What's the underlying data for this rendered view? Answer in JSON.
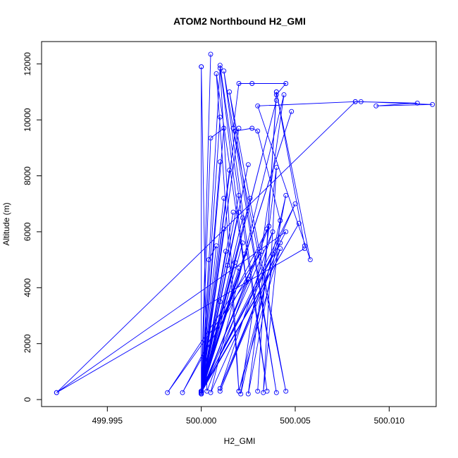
{
  "chart_data": {
    "type": "line",
    "title": "ATOM2 Northbound H2_GMI",
    "xlabel": "H2_GMI",
    "ylabel": "Altitude (m)",
    "xlim": [
      499.9915,
      500.0125
    ],
    "ylim": [
      -250,
      12800
    ],
    "xticks": [
      499.995,
      500.0,
      500.005,
      500.01
    ],
    "xtick_labels": [
      "499.995",
      "500.000",
      "500.005",
      "500.010"
    ],
    "yticks": [
      0,
      2000,
      4000,
      6000,
      8000,
      10000,
      12000
    ],
    "ytick_labels": [
      "0",
      "2000",
      "4000",
      "6000",
      "8000",
      "10000",
      "12000"
    ],
    "grid": false,
    "marker": "open-circle",
    "color": "#0000ff",
    "series": [
      {
        "points": [
          [
            500.0,
            200
          ],
          [
            500.0,
            11900
          ],
          [
            500.0,
            300
          ],
          [
            500.001,
            11850
          ],
          [
            500.002,
            300
          ],
          [
            500.0008,
            11650
          ],
          [
            500.0024,
            4200
          ],
          [
            500.001,
            11950
          ],
          [
            500.0035,
            300
          ],
          [
            500.0012,
            11750
          ],
          [
            500.004,
            250
          ],
          [
            500.0015,
            11000
          ],
          [
            500.0045,
            300
          ],
          [
            500.0017,
            9700
          ],
          [
            500.002,
            11300
          ],
          [
            500.0027,
            11300
          ],
          [
            500.0045,
            11300
          ],
          [
            500.004,
            10900
          ],
          [
            500.003,
            300
          ],
          [
            500.004,
            11000
          ],
          [
            500.0055,
            5500
          ],
          [
            500.004,
            11000
          ],
          [
            500.0058,
            5000
          ],
          [
            500.003,
            10500
          ],
          [
            500.0082,
            10650
          ],
          [
            500.0085,
            10650
          ],
          [
            500.0123,
            10550
          ],
          [
            500.0093,
            10500
          ],
          [
            500.0115,
            10600
          ],
          [
            500.0082,
            10650
          ],
          [
            499.9923,
            250
          ],
          [
            500.0055,
            5400
          ],
          [
            499.9923,
            250
          ],
          [
            500.0045,
            6000
          ],
          [
            500.0,
            300
          ],
          [
            500.0018,
            9600
          ],
          [
            500.0027,
            9700
          ],
          [
            500.003,
            9600
          ],
          [
            500.0042,
            6400
          ],
          [
            500.0033,
            250
          ],
          [
            500.004,
            8300
          ],
          [
            500.0025,
            200
          ],
          [
            500.0045,
            7300
          ],
          [
            500.0021,
            200
          ],
          [
            500.0044,
            10900
          ],
          [
            500.0005,
            250
          ],
          [
            500.005,
            7000
          ],
          [
            500.0,
            250
          ],
          [
            500.0052,
            6300
          ],
          [
            500.0,
            300
          ],
          [
            500.0048,
            10300
          ],
          [
            500.0,
            250
          ],
          [
            500.004,
            10700
          ],
          [
            500.0,
            200
          ],
          [
            500.0025,
            8400
          ],
          [
            500.0,
            300
          ],
          [
            500.002,
            7300
          ],
          [
            500.0,
            250
          ],
          [
            500.0022,
            6500
          ],
          [
            500.0,
            200
          ],
          [
            500.002,
            6700
          ],
          [
            500.0,
            250
          ],
          [
            500.0017,
            6700
          ],
          [
            500.0,
            300
          ],
          [
            500.0013,
            5300
          ],
          [
            500.0,
            250
          ],
          [
            500.001,
            3500
          ],
          [
            500.0,
            300
          ],
          [
            500.001,
            8500
          ],
          [
            500.0,
            250
          ],
          [
            500.0012,
            7200
          ],
          [
            500.0,
            250
          ],
          [
            500.0023,
            5200
          ],
          [
            500.0,
            300
          ],
          [
            500.0025,
            4300
          ],
          [
            499.9982,
            250
          ],
          [
            500.0032,
            5300
          ],
          [
            499.999,
            250
          ],
          [
            500.0036,
            6200
          ],
          [
            500.0003,
            300
          ],
          [
            500.0,
            11900
          ],
          [
            500.0,
            300
          ],
          [
            500.0005,
            12350
          ],
          [
            500.0,
            250
          ],
          [
            500.0012,
            9700
          ],
          [
            500.0005,
            9350
          ],
          [
            500.0,
            300
          ],
          [
            500.0008,
            5500
          ],
          [
            500.0004,
            5000
          ],
          [
            500.0,
            250
          ],
          [
            500.0012,
            6100
          ],
          [
            500.0,
            300
          ],
          [
            500.0015,
            8200
          ],
          [
            500.0,
            250
          ],
          [
            500.0022,
            5600
          ],
          [
            500.0,
            200
          ],
          [
            500.0035,
            6100
          ],
          [
            500.0,
            250
          ],
          [
            500.001,
            10100
          ],
          [
            500.0,
            300
          ],
          [
            500.002,
            9700
          ],
          [
            500.0,
            250
          ],
          [
            500.0026,
            7200
          ],
          [
            500.0,
            300
          ],
          [
            500.0018,
            4900
          ],
          [
            500.0,
            250
          ],
          [
            500.0038,
            6000
          ],
          [
            500.001,
            400
          ],
          [
            500.0042,
            5600
          ],
          [
            500.001,
            300
          ],
          [
            500.0042,
            5400
          ],
          [
            500.002,
            300
          ],
          [
            500.0038,
            5200
          ],
          [
            500.0,
            300
          ],
          [
            500.0014,
            4800
          ],
          [
            500.0,
            300
          ],
          [
            500.002,
            4700
          ],
          [
            500.0,
            200
          ]
        ],
        "points_note_free": true
      }
    ]
  }
}
